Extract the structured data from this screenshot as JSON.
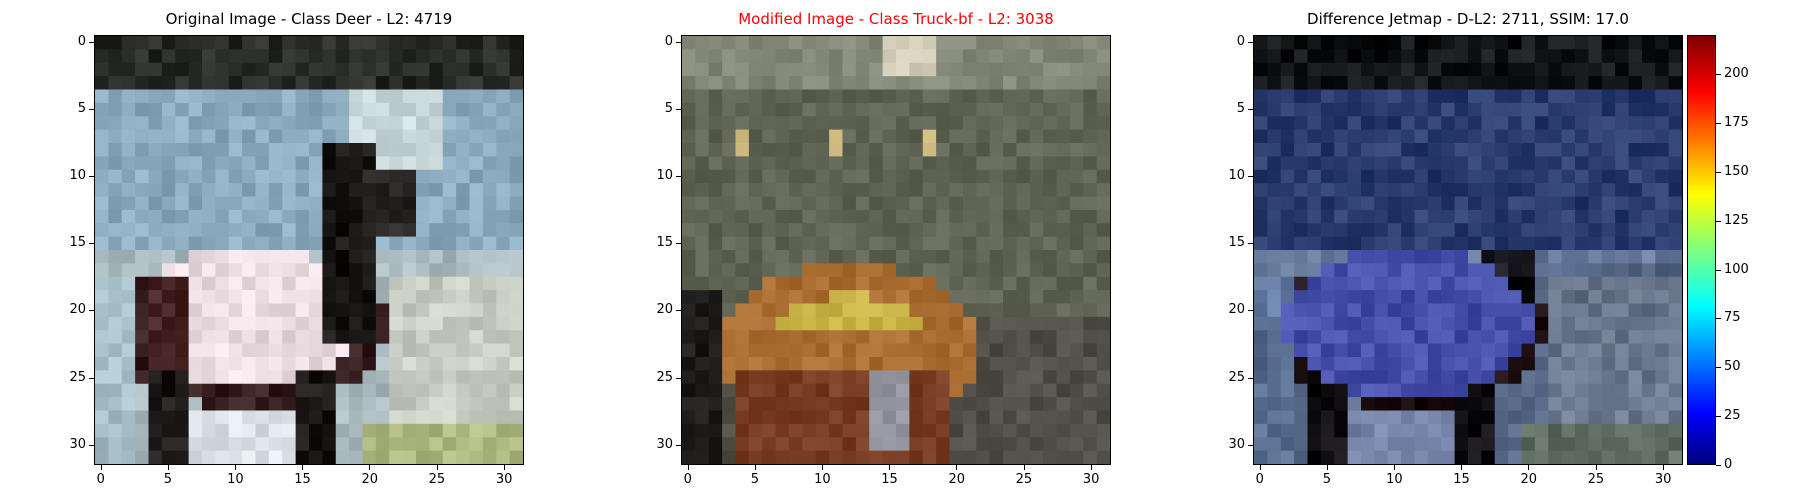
{
  "chart_data": [
    {
      "type": "heatmap",
      "title": "Original Image - Class Deer - L2: 4719",
      "title_color": "#000000",
      "xlim": [
        0,
        31
      ],
      "ylim": [
        0,
        31
      ],
      "xticks": [
        0,
        5,
        10,
        15,
        20,
        25,
        30
      ],
      "yticks": [
        0,
        5,
        10,
        15,
        20,
        25,
        30
      ],
      "grid": false,
      "content": "32x32 pixel image of a deer"
    },
    {
      "type": "heatmap",
      "title": "Modified Image - Class Truck-bf - L2: 3038",
      "title_color": "#ff0000",
      "xlim": [
        0,
        31
      ],
      "ylim": [
        0,
        31
      ],
      "xticks": [
        0,
        5,
        10,
        15,
        20,
        25,
        30
      ],
      "yticks": [
        0,
        5,
        10,
        15,
        20,
        25,
        30
      ],
      "grid": false,
      "content": "32x32 pixel perturbed image"
    },
    {
      "type": "heatmap",
      "title": "Difference Jetmap - D-L2: 2711, SSIM: 17.0",
      "title_color": "#000000",
      "xlim": [
        0,
        31
      ],
      "ylim": [
        0,
        31
      ],
      "xticks": [
        0,
        5,
        10,
        15,
        20,
        25,
        30
      ],
      "yticks": [
        0,
        5,
        10,
        15,
        20,
        25,
        30
      ],
      "grid": false,
      "colorbar": {
        "colormap": "jet",
        "range": [
          0,
          220
        ],
        "ticks": [
          0,
          25,
          50,
          75,
          100,
          125,
          150,
          175,
          200
        ]
      }
    }
  ]
}
